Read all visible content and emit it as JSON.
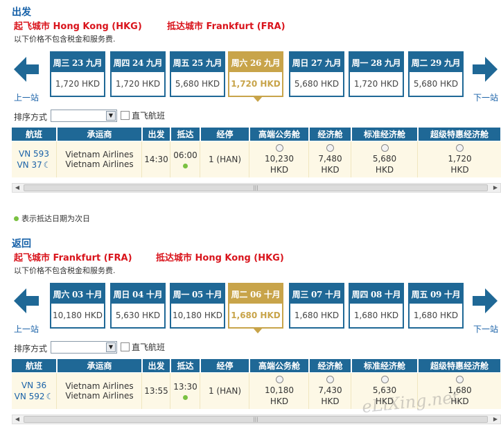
{
  "outbound": {
    "title": "出发",
    "from_city": "起飞城市 Hong Kong (HKG)",
    "to_city": "抵达城市 Frankfurt (FRA)",
    "note": "以下价格不包含税金和服务费.",
    "prev_label": "上一站",
    "next_label": "下一站",
    "dates": [
      {
        "label": "周三 23 九月",
        "price": "1,720 HKD",
        "selected": false
      },
      {
        "label": "周四 24 九月",
        "price": "1,720 HKD",
        "selected": false
      },
      {
        "label": "周五 25 九月",
        "price": "5,680 HKD",
        "selected": false
      },
      {
        "label": "周六 26 九月",
        "price": "1,720 HKD",
        "selected": true
      },
      {
        "label": "周日 27 九月",
        "price": "5,680 HKD",
        "selected": false
      },
      {
        "label": "周一 28 九月",
        "price": "1,720 HKD",
        "selected": false
      },
      {
        "label": "周二 29 九月",
        "price": "5,680 HKD",
        "selected": false
      }
    ],
    "sort_label": "排序方式",
    "sort_value": "",
    "nonstop_label": "直飞航班",
    "headers": [
      "航班",
      "承运商",
      "出发",
      "抵达",
      "经停",
      "高端公务舱",
      "经济舱",
      "标准经济舱",
      "超级特惠经济舱"
    ],
    "row": {
      "flight1": "VN 593",
      "flight2": "VN 37",
      "carrier1": "Vietnam Airlines",
      "carrier2": "Vietnam Airlines",
      "depart": "14:30",
      "arrive": "06:00",
      "stops": "1 (HAN)",
      "fares": [
        {
          "amount": "10,230",
          "currency": "HKD"
        },
        {
          "amount": "7,480",
          "currency": "HKD"
        },
        {
          "amount": "5,680",
          "currency": "HKD"
        },
        {
          "amount": "1,720",
          "currency": "HKD"
        }
      ]
    }
  },
  "legend_text": "表示抵达日期为次日",
  "return": {
    "title": "返回",
    "from_city": "起飞城市 Frankfurt (FRA)",
    "to_city": "抵达城市 Hong Kong (HKG)",
    "note": "以下价格不包含税金和服务费.",
    "prev_label": "上一站",
    "next_label": "下一站",
    "dates": [
      {
        "label": "周六 03 十月",
        "price": "10,180 HKD",
        "selected": false
      },
      {
        "label": "周日 04 十月",
        "price": "5,630 HKD",
        "selected": false
      },
      {
        "label": "周一 05 十月",
        "price": "10,180 HKD",
        "selected": false
      },
      {
        "label": "周二 06 十月",
        "price": "1,680 HKD",
        "selected": true
      },
      {
        "label": "周三 07 十月",
        "price": "1,680 HKD",
        "selected": false
      },
      {
        "label": "周四 08 十月",
        "price": "1,680 HKD",
        "selected": false
      },
      {
        "label": "周五 09 十月",
        "price": "1,680 HKD",
        "selected": false
      }
    ],
    "sort_label": "排序方式",
    "sort_value": "",
    "nonstop_label": "直飞航班",
    "headers": [
      "航班",
      "承运商",
      "出发",
      "抵达",
      "经停",
      "高端公务舱",
      "经济舱",
      "标准经济舱",
      "超级特惠经济舱"
    ],
    "row": {
      "flight1": "VN 36",
      "flight2": "VN 592",
      "carrier1": "Vietnam Airlines",
      "carrier2": "Vietnam Airlines",
      "depart": "13:55",
      "arrive": "13:30",
      "stops": "1 (HAN)",
      "fares": [
        {
          "amount": "10,180",
          "currency": "HKD"
        },
        {
          "amount": "7,430",
          "currency": "HKD"
        },
        {
          "amount": "5,630",
          "currency": "HKD"
        },
        {
          "amount": "1,680",
          "currency": "HKD"
        }
      ]
    }
  },
  "watermark": "eLiXing.net",
  "colors": {
    "header_blue": "#1f6896",
    "selected_gold": "#c8a44a",
    "city_red": "#d9141c",
    "row_bg": "#fdf8e6",
    "next_day_dot": "#7ac142"
  }
}
